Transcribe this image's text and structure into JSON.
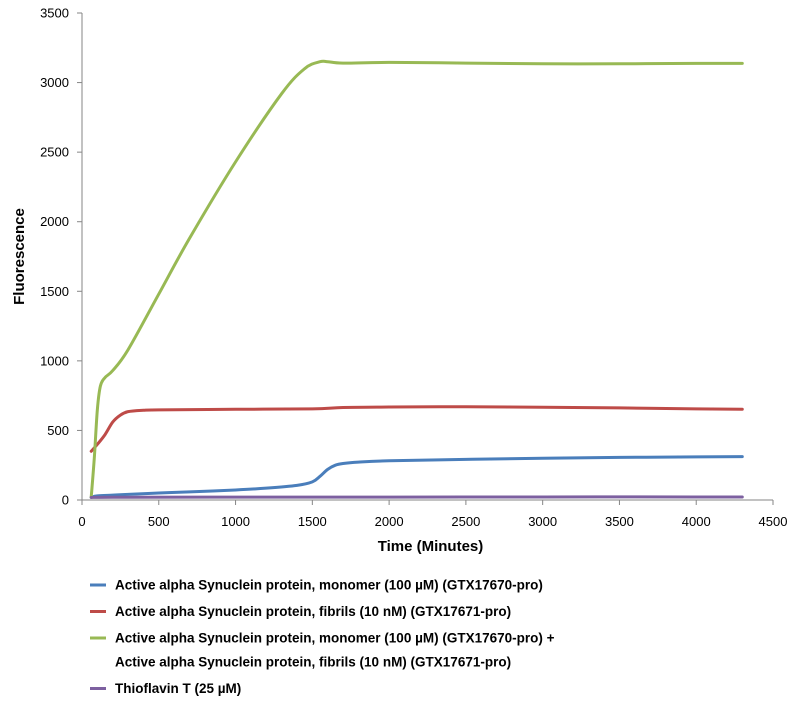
{
  "chart_data": {
    "type": "line",
    "title": "",
    "xlabel": "Time (Minutes)",
    "ylabel": "Fluorescence",
    "xlim": [
      0,
      4500
    ],
    "ylim": [
      0,
      3500
    ],
    "xticks": [
      0,
      500,
      1000,
      1500,
      2000,
      2500,
      3000,
      3500,
      4000,
      4500
    ],
    "yticks": [
      0,
      500,
      1000,
      1500,
      2000,
      2500,
      3000,
      3500
    ],
    "grid": false,
    "legend_position": "bottom",
    "series": [
      {
        "name": "Active alpha Synuclein protein, monomer (100 µM) (GTX17670-pro)",
        "color": "#4a7ebb",
        "points": [
          [
            60,
            20
          ],
          [
            100,
            30
          ],
          [
            200,
            35
          ],
          [
            300,
            40
          ],
          [
            500,
            50
          ],
          [
            700,
            58
          ],
          [
            1000,
            72
          ],
          [
            1200,
            85
          ],
          [
            1400,
            105
          ],
          [
            1500,
            130
          ],
          [
            1550,
            170
          ],
          [
            1600,
            220
          ],
          [
            1650,
            250
          ],
          [
            1700,
            262
          ],
          [
            1800,
            272
          ],
          [
            2000,
            282
          ],
          [
            2500,
            292
          ],
          [
            3000,
            300
          ],
          [
            3500,
            306
          ],
          [
            4000,
            310
          ],
          [
            4300,
            312
          ]
        ]
      },
      {
        "name": "Active alpha Synuclein protein, fibrils (10 nM) (GTX17671-pro)",
        "color": "#be4b48",
        "points": [
          [
            60,
            350
          ],
          [
            100,
            400
          ],
          [
            150,
            470
          ],
          [
            200,
            560
          ],
          [
            250,
            610
          ],
          [
            300,
            635
          ],
          [
            400,
            645
          ],
          [
            500,
            648
          ],
          [
            1000,
            652
          ],
          [
            1500,
            655
          ],
          [
            1700,
            665
          ],
          [
            2000,
            668
          ],
          [
            2500,
            670
          ],
          [
            3000,
            667
          ],
          [
            3500,
            662
          ],
          [
            4000,
            655
          ],
          [
            4300,
            652
          ]
        ]
      },
      {
        "name": "Active alpha Synuclein protein, monomer (100 µM) (GTX17670-pro) + Active alpha Synuclein protein, fibrils (10 nM) (GTX17671-pro)",
        "name_lines": [
          "Active alpha Synuclein protein, monomer (100 µM) (GTX17670-pro) +",
          "Active alpha Synuclein protein, fibrils (10 nM) (GTX17671-pro)"
        ],
        "color": "#98b954",
        "points": [
          [
            60,
            20
          ],
          [
            80,
            300
          ],
          [
            100,
            650
          ],
          [
            120,
            820
          ],
          [
            150,
            880
          ],
          [
            200,
            930
          ],
          [
            300,
            1080
          ],
          [
            500,
            1480
          ],
          [
            700,
            1880
          ],
          [
            1000,
            2430
          ],
          [
            1300,
            2920
          ],
          [
            1450,
            3100
          ],
          [
            1550,
            3150
          ],
          [
            1600,
            3150
          ],
          [
            1700,
            3140
          ],
          [
            2000,
            3145
          ],
          [
            2500,
            3140
          ],
          [
            3000,
            3135
          ],
          [
            3500,
            3135
          ],
          [
            4000,
            3138
          ],
          [
            4300,
            3138
          ]
        ]
      },
      {
        "name": "Thioflavin T (25 µM)",
        "color": "#7d60a0",
        "points": [
          [
            60,
            18
          ],
          [
            200,
            20
          ],
          [
            1000,
            21
          ],
          [
            2000,
            21
          ],
          [
            3000,
            22
          ],
          [
            4000,
            22
          ],
          [
            4300,
            22
          ]
        ]
      }
    ]
  }
}
